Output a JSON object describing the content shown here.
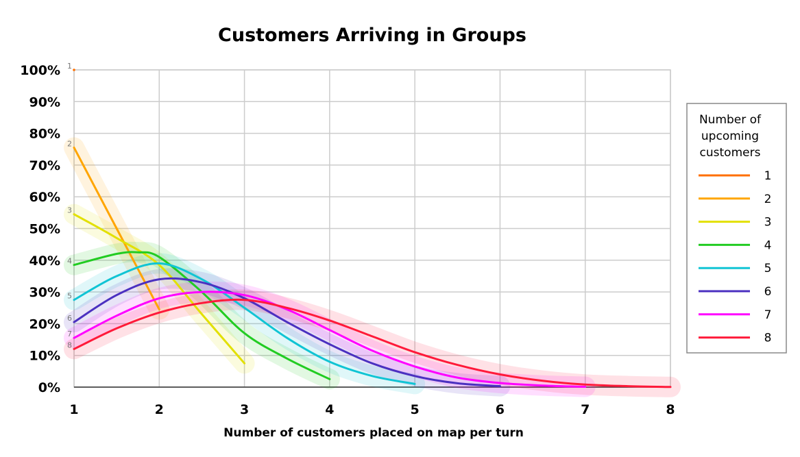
{
  "chart_data": {
    "type": "line",
    "title": "Customers Arriving in Groups",
    "xlabel": "Number of customers placed on map per turn",
    "ylabel": "",
    "xlim": [
      1,
      8
    ],
    "ylim": [
      0,
      100
    ],
    "x_ticks": [
      "1",
      "2",
      "3",
      "4",
      "5",
      "6",
      "7",
      "8"
    ],
    "y_ticks": [
      "0%",
      "10%",
      "20%",
      "30%",
      "40%",
      "50%",
      "60%",
      "70%",
      "80%",
      "90%",
      "100%"
    ],
    "grid": true,
    "legend": {
      "title": "Number of upcoming customers",
      "placement": "right"
    },
    "series": [
      {
        "name": "1",
        "color": "#ff6f00",
        "points": [
          [
            1,
            100
          ]
        ]
      },
      {
        "name": "2",
        "color": "#ffa500",
        "points": [
          [
            1,
            75.5
          ],
          [
            2,
            24.5
          ]
        ]
      },
      {
        "name": "3",
        "color": "#e2e000",
        "points": [
          [
            1,
            54.5
          ],
          [
            1.5,
            47
          ],
          [
            2,
            38.5
          ],
          [
            2.5,
            23
          ],
          [
            3,
            7.5
          ]
        ]
      },
      {
        "name": "4",
        "color": "#22cc22",
        "points": [
          [
            1,
            38.5
          ],
          [
            1.5,
            42
          ],
          [
            1.75,
            42.5
          ],
          [
            2,
            41
          ],
          [
            2.5,
            30
          ],
          [
            3,
            17
          ],
          [
            3.5,
            9
          ],
          [
            4,
            2.5
          ]
        ]
      },
      {
        "name": "5",
        "color": "#10c4d4",
        "points": [
          [
            1,
            27.5
          ],
          [
            1.5,
            35
          ],
          [
            2,
            39
          ],
          [
            2.5,
            34
          ],
          [
            3,
            25
          ],
          [
            3.5,
            15.5
          ],
          [
            4,
            8
          ],
          [
            4.5,
            3.5
          ],
          [
            5,
            1
          ]
        ]
      },
      {
        "name": "6",
        "color": "#4b30c0",
        "points": [
          [
            1,
            20.5
          ],
          [
            1.5,
            29
          ],
          [
            2,
            34
          ],
          [
            2.5,
            33
          ],
          [
            3,
            28
          ],
          [
            3.5,
            20.5
          ],
          [
            4,
            13.5
          ],
          [
            4.5,
            7.5
          ],
          [
            5,
            3.5
          ],
          [
            5.5,
            1.2
          ],
          [
            6,
            0.3
          ]
        ]
      },
      {
        "name": "7",
        "color": "#ff00ff",
        "points": [
          [
            1,
            15.5
          ],
          [
            1.5,
            22.5
          ],
          [
            2,
            28
          ],
          [
            2.5,
            30
          ],
          [
            3,
            29
          ],
          [
            3.5,
            24.5
          ],
          [
            4,
            18
          ],
          [
            4.5,
            11.5
          ],
          [
            5,
            6.5
          ],
          [
            5.5,
            3
          ],
          [
            6,
            1.3
          ],
          [
            6.5,
            0.5
          ],
          [
            7,
            0.1
          ]
        ]
      },
      {
        "name": "8",
        "color": "#ff1a3a",
        "points": [
          [
            1,
            12
          ],
          [
            1.5,
            18.5
          ],
          [
            2,
            23.5
          ],
          [
            2.5,
            26.5
          ],
          [
            3,
            27.5
          ],
          [
            3.5,
            25
          ],
          [
            4,
            21
          ],
          [
            4.5,
            16
          ],
          [
            5,
            11
          ],
          [
            5.5,
            7
          ],
          [
            6,
            4
          ],
          [
            6.5,
            2
          ],
          [
            7,
            0.8
          ],
          [
            7.5,
            0.3
          ],
          [
            8,
            0.05
          ]
        ]
      }
    ]
  }
}
